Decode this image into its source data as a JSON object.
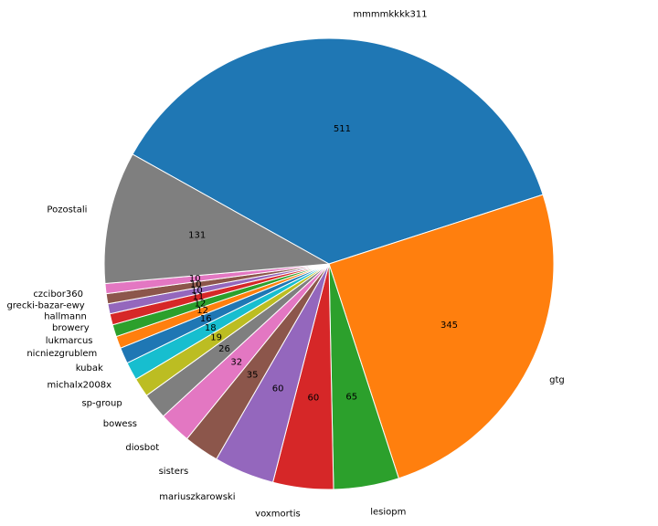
{
  "chart_data": {
    "type": "pie",
    "start_angle_deg": 150.9,
    "direction": "clockwise",
    "legend": "none",
    "slices": [
      {
        "label": "mmmmkkkk311",
        "value": 511,
        "color": "#1f77b4"
      },
      {
        "label": "gtg",
        "value": 345,
        "color": "#ff7f0e"
      },
      {
        "label": "lesiopm",
        "value": 65,
        "color": "#2ca02c"
      },
      {
        "label": "voxmortis",
        "value": 60,
        "color": "#d62728"
      },
      {
        "label": "mariuszkarowski",
        "value": 60,
        "color": "#9467bd"
      },
      {
        "label": "sisters",
        "value": 35,
        "color": "#8c564b"
      },
      {
        "label": "diosbot",
        "value": 32,
        "color": "#e377c2"
      },
      {
        "label": "bowess",
        "value": 26,
        "color": "#7f7f7f"
      },
      {
        "label": "sp-group",
        "value": 19,
        "color": "#bcbd22"
      },
      {
        "label": "michalx2008x",
        "value": 18,
        "color": "#17becf"
      },
      {
        "label": "kubak",
        "value": 16,
        "color": "#1f77b4"
      },
      {
        "label": "nicniezgrublem",
        "value": 12,
        "color": "#ff7f0e"
      },
      {
        "label": "lukmarcus",
        "value": 12,
        "color": "#2ca02c"
      },
      {
        "label": "browery",
        "value": 11,
        "color": "#d62728"
      },
      {
        "label": "hallmann",
        "value": 10,
        "color": "#9467bd"
      },
      {
        "label": "grecki-bazar-ewy",
        "value": 10,
        "color": "#8c564b"
      },
      {
        "label": "czcibor360",
        "value": 10,
        "color": "#e377c2"
      },
      {
        "label": "Pozostali",
        "value": 131,
        "color": "#7f7f7f"
      }
    ]
  }
}
